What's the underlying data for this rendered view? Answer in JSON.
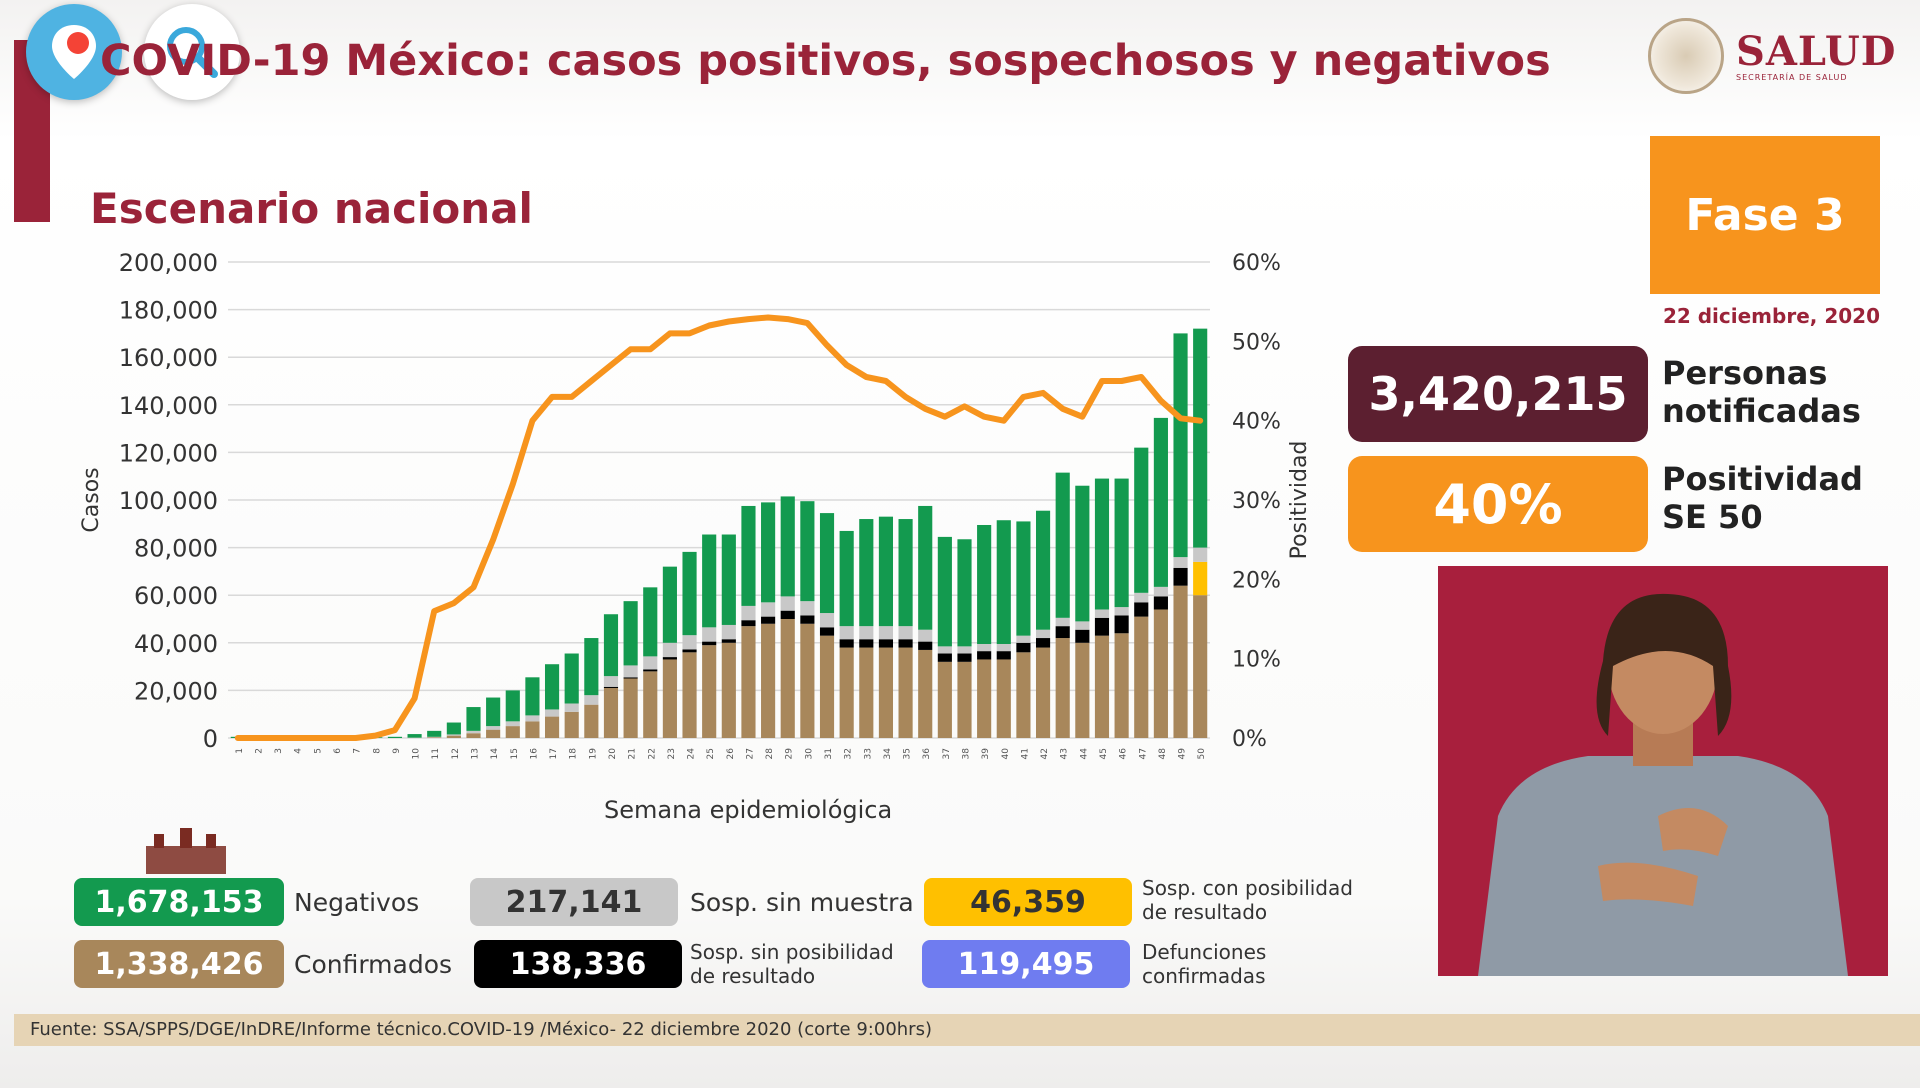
{
  "header": {
    "title": "COVID-19 México: casos positivos, sospechosos y negativos",
    "logo_text": "SALUD",
    "logo_subtext": "SECRETARÍA DE SALUD"
  },
  "overlay": {
    "pin_icon": "pin-icon",
    "search_icon": "search-icon"
  },
  "colors": {
    "maroon": "#9a2339",
    "orange": "#f7941d",
    "negativos": "#139a4f",
    "confirmados": "#a8875b",
    "sosp_sin_muestra": "#c8c8c8",
    "sosp_sin_posibilidad": "#000000",
    "sosp_con_posibilidad": "#ffc000",
    "defunciones": "#6f7cf0"
  },
  "phase": {
    "label": "Fase 3",
    "date": "22 diciembre, 2020"
  },
  "kpis": {
    "personas_value": "3,420,215",
    "personas_label_1": "Personas",
    "personas_label_2": "notificadas",
    "positividad_value": "40%",
    "positividad_label_1": "Positividad",
    "positividad_label_2": "SE 50"
  },
  "totals": {
    "negativos": "1,678,153",
    "negativos_label": "Negativos",
    "confirmados": "1,338,426",
    "confirmados_label": "Confirmados",
    "sosp_sin_muestra": "217,141",
    "sosp_sin_muestra_label": "Sosp. sin muestra",
    "sosp_sin_posibilidad": "138,336",
    "sosp_sin_posibilidad_label_1": "Sosp. sin posibilidad",
    "sosp_sin_posibilidad_label_2": "de resultado",
    "sosp_con_posibilidad": "46,359",
    "sosp_con_posibilidad_label_1": "Sosp. con posibilidad",
    "sosp_con_posibilidad_label_2": "de resultado",
    "defunciones": "119,495",
    "defunciones_label_1": "Defunciones",
    "defunciones_label_2": "confirmadas"
  },
  "source": "Fuente: SSA/SPPS/DGE/InDRE/Informe técnico.COVID-19 /México- 22 diciembre 2020 (corte 9:00hrs)",
  "chart_data": {
    "type": "bar",
    "title": "Escenario nacional",
    "xlabel": "Semana epidemiológica",
    "ylabel": "Casos",
    "y2label": "Positividad",
    "ylim": [
      0,
      200000
    ],
    "y2lim": [
      0,
      60
    ],
    "yticks": [
      "200,000",
      "180,000",
      "160,000",
      "140,000",
      "120,000",
      "100,000",
      "80,000",
      "60,000",
      "40,000",
      "20,000",
      "0"
    ],
    "y2ticks": [
      "60%",
      "50%",
      "40%",
      "30%",
      "20%",
      "10%",
      "0%"
    ],
    "grid": true,
    "categories": [
      "1",
      "2",
      "3",
      "4",
      "5",
      "6",
      "7",
      "8",
      "9",
      "10",
      "11",
      "12",
      "13",
      "14",
      "15",
      "16",
      "17",
      "18",
      "19",
      "20",
      "21",
      "22",
      "23",
      "24",
      "25",
      "26",
      "27",
      "28",
      "29",
      "30",
      "31",
      "32",
      "33",
      "34",
      "35",
      "36",
      "37",
      "38",
      "39",
      "40",
      "41",
      "42",
      "43",
      "44",
      "45",
      "46",
      "47",
      "48",
      "49",
      "50"
    ],
    "series": [
      {
        "name": "Confirmados",
        "values": [
          0,
          0,
          0,
          0,
          0,
          0,
          0,
          0,
          0,
          50,
          300,
          1000,
          2000,
          3500,
          5000,
          7000,
          9000,
          11000,
          14000,
          21000,
          25000,
          28000,
          33000,
          36000,
          39000,
          40000,
          47000,
          48000,
          50000,
          48000,
          43000,
          38000,
          38000,
          38000,
          38000,
          37000,
          32000,
          32000,
          33000,
          33000,
          36000,
          38000,
          42000,
          40000,
          43000,
          44000,
          51000,
          54000,
          64000,
          60000
        ]
      },
      {
        "name": "Sosp. sin posibilidad de resultado",
        "values": [
          0,
          0,
          0,
          0,
          0,
          0,
          0,
          0,
          0,
          0,
          0,
          0,
          0,
          0,
          0,
          0,
          0,
          0,
          0,
          500,
          500,
          800,
          1000,
          1200,
          1500,
          1500,
          2500,
          3000,
          3500,
          3500,
          3500,
          3500,
          3500,
          3500,
          3500,
          3500,
          3500,
          3500,
          3500,
          3500,
          4000,
          4000,
          5000,
          5500,
          7500,
          7500,
          6000,
          5500,
          7500,
          0
        ]
      },
      {
        "name": "Sosp. con posibilidad de resultado",
        "values": [
          0,
          0,
          0,
          0,
          0,
          0,
          0,
          0,
          0,
          0,
          0,
          0,
          0,
          0,
          0,
          0,
          0,
          0,
          0,
          0,
          0,
          0,
          0,
          0,
          0,
          0,
          0,
          0,
          0,
          0,
          0,
          0,
          0,
          0,
          0,
          0,
          0,
          0,
          0,
          0,
          0,
          0,
          0,
          0,
          0,
          0,
          0,
          0,
          0,
          14000
        ]
      },
      {
        "name": "Sosp. sin muestra",
        "values": [
          0,
          0,
          0,
          0,
          0,
          0,
          0,
          0,
          0,
          100,
          200,
          500,
          1000,
          1500,
          2000,
          2500,
          3000,
          3500,
          4000,
          4500,
          5000,
          5500,
          6000,
          6000,
          6000,
          6000,
          6000,
          6000,
          6000,
          6000,
          6000,
          5500,
          5500,
          5500,
          5500,
          5000,
          3000,
          3000,
          3000,
          3000,
          3000,
          3500,
          3500,
          3500,
          3500,
          3500,
          4000,
          4000,
          4500,
          6000
        ]
      },
      {
        "name": "Negativos",
        "values": [
          500,
          700,
          900,
          1000,
          700,
          500,
          300,
          300,
          500,
          1500,
          2500,
          5000,
          10000,
          12000,
          13000,
          16000,
          19000,
          21000,
          24000,
          26000,
          27000,
          29000,
          32000,
          35000,
          39000,
          38000,
          42000,
          42000,
          42000,
          42000,
          42000,
          40000,
          45000,
          46000,
          45000,
          52000,
          46000,
          45000,
          50000,
          52000,
          48000,
          50000,
          61000,
          57000,
          55000,
          54000,
          61000,
          71000,
          94000,
          92000
        ]
      }
    ],
    "positividad": [
      0,
      0,
      0,
      0,
      0,
      0,
      0,
      0.3,
      1,
      5,
      16,
      17,
      19,
      25,
      32,
      40,
      43,
      43,
      45,
      47,
      49,
      49,
      51,
      51,
      52,
      52.5,
      52.8,
      53,
      52.8,
      52.3,
      49.5,
      47,
      45.5,
      45,
      43,
      41.5,
      40.5,
      41.8,
      40.5,
      40,
      43,
      43.5,
      41.5,
      40.5,
      45,
      45,
      45.5,
      42.5,
      40.3,
      40
    ]
  }
}
